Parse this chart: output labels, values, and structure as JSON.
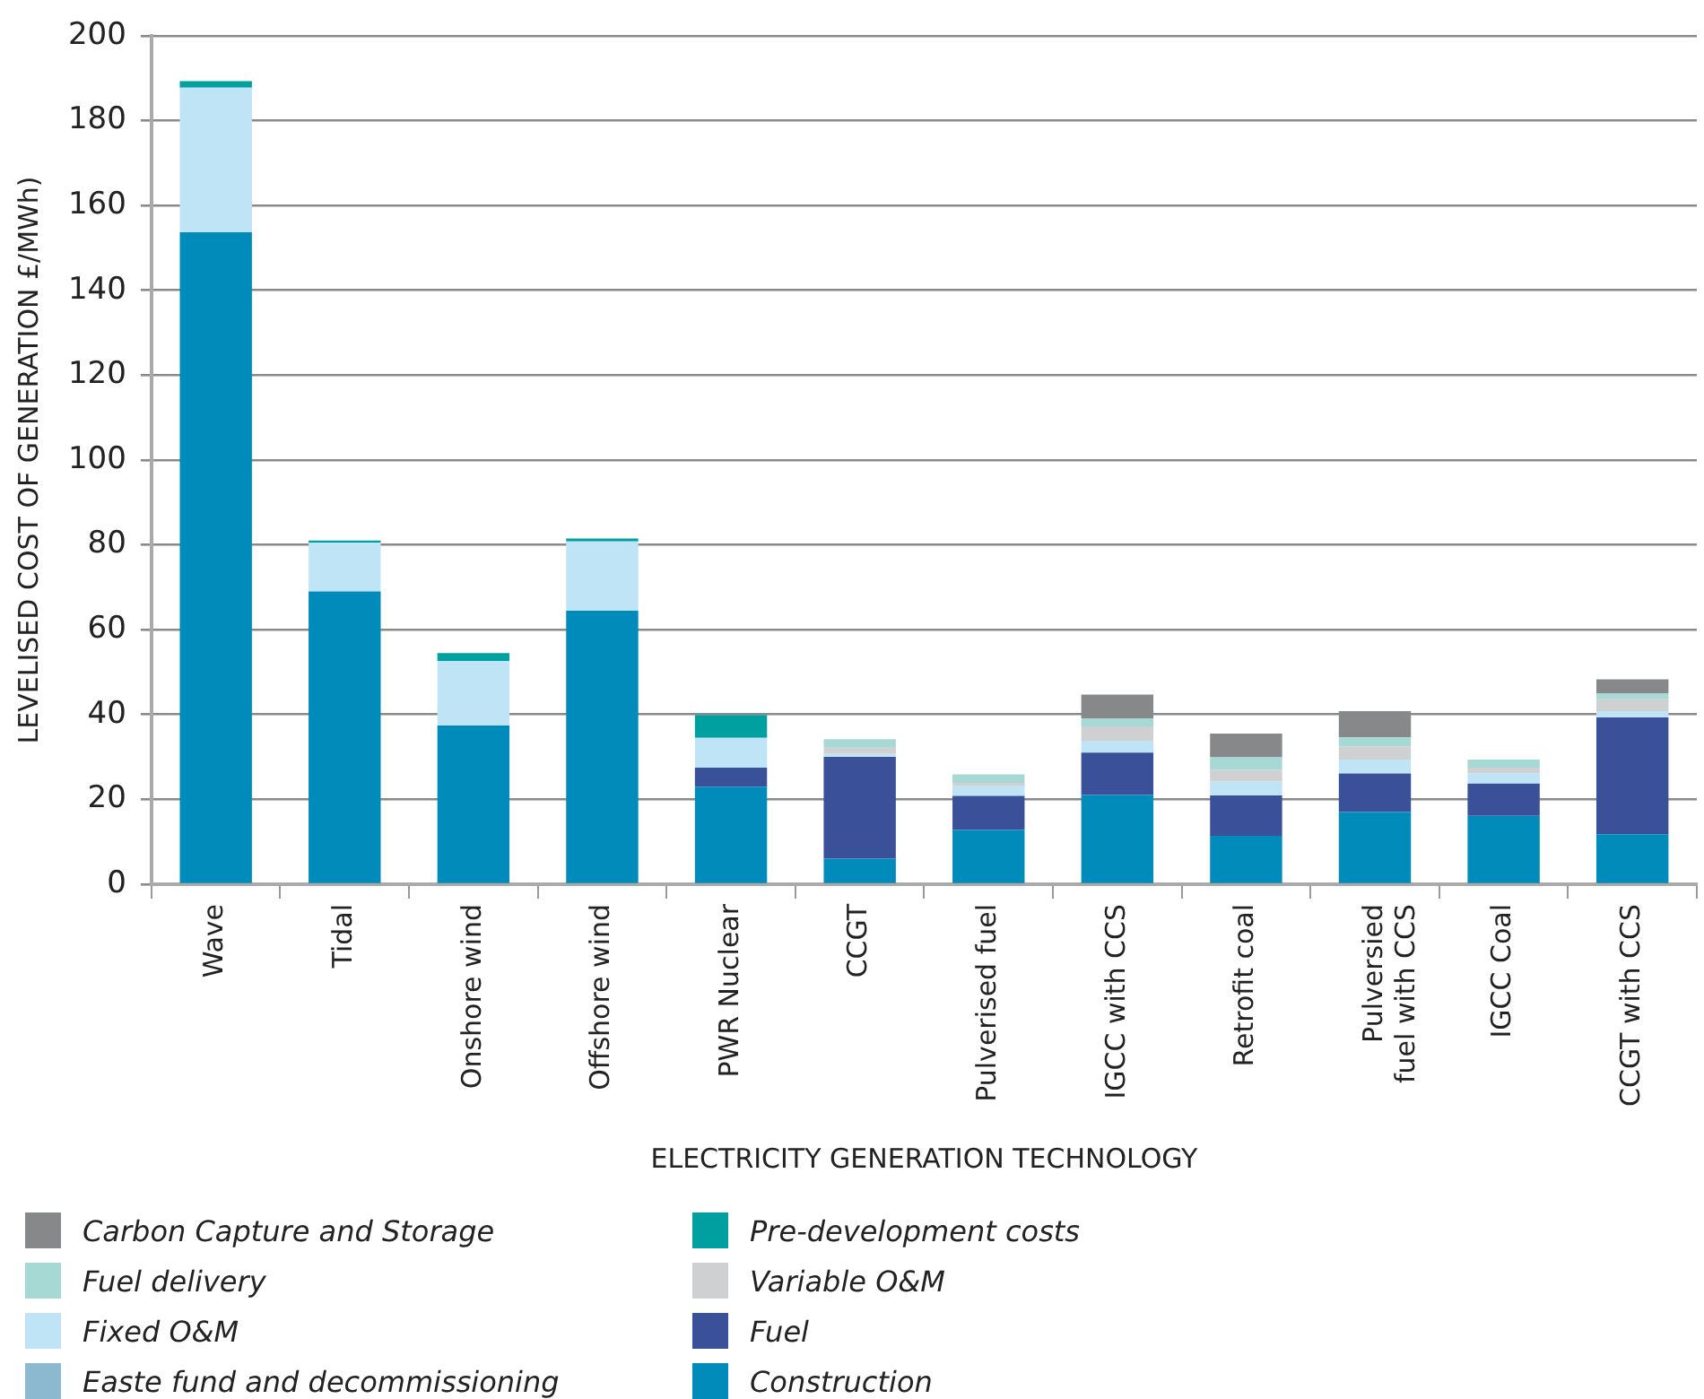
{
  "chart_data": {
    "type": "bar",
    "stacked": true,
    "xlabel": "ELECTRICITY GENERATION TECHNOLOGY",
    "ylabel": "LEVELISED COST OF GENERATION £/MWh)",
    "categories": [
      "Wave",
      "Tidal",
      "Onshore wind",
      "Offshore wind",
      "PWR Nuclear",
      "CCGT",
      "Pulverised fuel",
      "IGCC with CCS",
      "Retrofit coal",
      "Pulversied fuel with CCS",
      "IGCC Coal",
      "CCGT with CCS"
    ],
    "ylim": [
      0,
      200
    ],
    "yticks": [
      0,
      20,
      40,
      60,
      80,
      100,
      120,
      140,
      160,
      180,
      200
    ],
    "grid": "y",
    "legend": "bottom left",
    "series": [
      {
        "name": "Construction",
        "color": "#008bba",
        "values": [
          153.7,
          69,
          37.4,
          64.5,
          23,
          6,
          12.8,
          21,
          11.4,
          17,
          16.1,
          11.8
        ]
      },
      {
        "name": "Easte fund and decommissioning",
        "color": "#8db9d0",
        "values": [
          0,
          0,
          0,
          0,
          0,
          0,
          0,
          0,
          0,
          0,
          0,
          0
        ]
      },
      {
        "name": "Fuel",
        "color": "#3a5199",
        "values": [
          0,
          0,
          0,
          0,
          4.5,
          24,
          8,
          10,
          9.5,
          9.1,
          7.6,
          27.5
        ]
      },
      {
        "name": "Fixed O&M",
        "color": "#bfe4f6",
        "values": [
          34.1,
          11.5,
          15.2,
          16.3,
          7,
          0.7,
          2.3,
          2.8,
          3.3,
          3.3,
          2.4,
          1.5
        ]
      },
      {
        "name": "Variable O&M",
        "color": "#cfd0d2",
        "values": [
          0,
          0,
          0,
          0,
          0,
          1.5,
          0.8,
          3.4,
          2.8,
          3.1,
          1.4,
          2.8
        ]
      },
      {
        "name": "Fuel delivery",
        "color": "#a6d9d3",
        "values": [
          0,
          0,
          0,
          0,
          0,
          2,
          2,
          1.9,
          2.9,
          2.1,
          1.9,
          1.4
        ]
      },
      {
        "name": "Pre-development costs",
        "color": "#00a0a0",
        "values": [
          1.5,
          0.5,
          1.9,
          0.7,
          5.4,
          0,
          0,
          0,
          0,
          0,
          0,
          0
        ]
      },
      {
        "name": "Carbon Capture and Storage",
        "color": "#87888a",
        "values": [
          0,
          0,
          0,
          0,
          0,
          0,
          0,
          5.6,
          5.6,
          6.2,
          0,
          3.3
        ]
      }
    ]
  }
}
